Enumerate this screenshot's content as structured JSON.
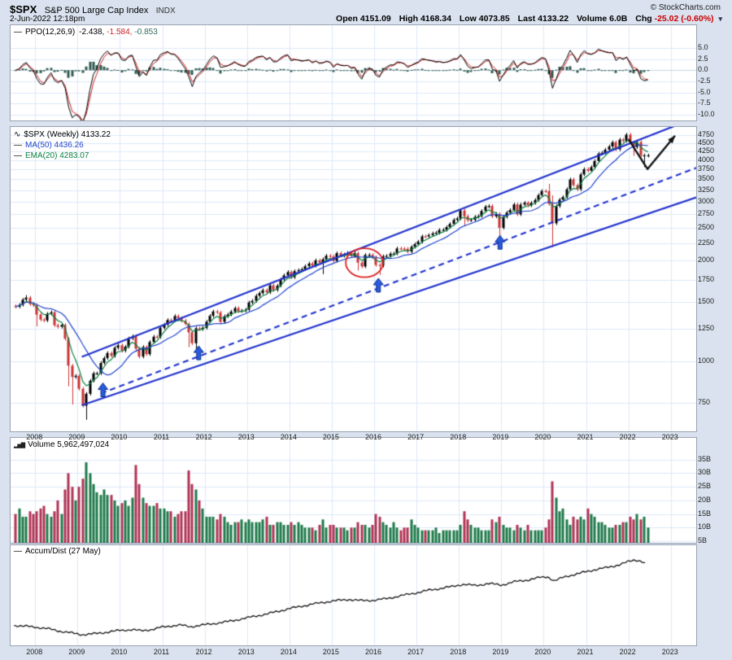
{
  "header": {
    "symbol": "$SPX",
    "index_name": "S&P 500 Large Cap Index",
    "exchange": "INDX",
    "copyright": "© StockCharts.com",
    "datetime": "2-Jun-2022 12:18pm",
    "quote_fields": [
      {
        "label": "Open",
        "value": "4151.09"
      },
      {
        "label": "High",
        "value": "4168.34"
      },
      {
        "label": "Low",
        "value": "4073.85"
      },
      {
        "label": "Last",
        "value": "4133.22"
      },
      {
        "label": "Volume",
        "value": "6.0B"
      },
      {
        "label": "Chg",
        "value": "-25.02 (-0.60%)"
      }
    ]
  },
  "icons": {
    "dropdown": "▾",
    "wave": "∿",
    "line": "—",
    "bars": "▂▅▇"
  },
  "legends": {
    "ppo": {
      "name": "PPO(12,26,9)",
      "values": [
        {
          "text": "-2.438,"
        },
        {
          "text": "-1.584,"
        },
        {
          "text": "-0.853"
        }
      ]
    },
    "price": {
      "symbol": "$SPX (Weekly) 4133.22",
      "ma": "MA(50) 4436.26",
      "ema": "EMA(20) 4283.07"
    },
    "volume": {
      "label": "Volume 5,962,497,024"
    },
    "accum": {
      "label": "Accum/Dist (27 May)"
    }
  },
  "colors": {
    "page_bg": "#d9e2ee",
    "panel_bg": "#ffffff",
    "panel_border": "#98a3b2",
    "grid": "#dce8f8",
    "zero_line": "#c5d2e4",
    "axis_text": "#222222",
    "candle_up": "#000000",
    "candle_down": "#cc3333",
    "ma50": "#2244cc",
    "ema20": "#0c8040",
    "channel": "#2233cc",
    "ppo_line": "#000000",
    "ppo_signal": "#cc2222",
    "ppo_hist": "#2e5b50",
    "vol_up": "#1e7a4a",
    "vol_down": "#b03355",
    "accum_line": "#111111",
    "buy_arrow": "#2a5ade",
    "buy_arrow_border": "#0a2f8a",
    "annotation_red": "#dd2222",
    "annotation_black": "#111111",
    "chg_negative": "#cc0000"
  },
  "x_axis": {
    "years": [
      2008,
      2009,
      2010,
      2011,
      2012,
      2013,
      2014,
      2015,
      2016,
      2017,
      2018,
      2019,
      2020,
      2021,
      2022,
      2023
    ]
  },
  "chart_data": {
    "type": "multi-panel-financial",
    "x_unit": "decimal_year",
    "x_range": [
      2007.42,
      2023.6
    ],
    "monthly": {
      "start_year": 2007,
      "start_month": 7,
      "close": [
        1455,
        1474,
        1527,
        1549,
        1481,
        1468,
        1378,
        1331,
        1323,
        1386,
        1400,
        1280,
        1267,
        1283,
        1166,
        969,
        896,
        903,
        826,
        735,
        798,
        873,
        919,
        919,
        987,
        1021,
        1057,
        1036,
        1096,
        1115,
        1074,
        1104,
        1169,
        1187,
        1089,
        1031,
        1102,
        1049,
        1141,
        1183,
        1181,
        1258,
        1286,
        1327,
        1326,
        1364,
        1345,
        1321,
        1292,
        1219,
        1131,
        1253,
        1247,
        1258,
        1312,
        1366,
        1408,
        1398,
        1310,
        1362,
        1379,
        1407,
        1441,
        1412,
        1416,
        1426,
        1498,
        1515,
        1569,
        1598,
        1631,
        1606,
        1686,
        1633,
        1682,
        1757,
        1806,
        1848,
        1783,
        1859,
        1872,
        1884,
        1924,
        1960,
        1931,
        2003,
        1972,
        2018,
        2068,
        2059,
        1995,
        2105,
        2068,
        2086,
        2107,
        2063,
        2104,
        1972,
        1920,
        2079,
        2080,
        2044,
        1940,
        1932,
        2060,
        2065,
        2097,
        2099,
        2174,
        2171,
        2168,
        2126,
        2199,
        2239,
        2279,
        2364,
        2363,
        2384,
        2412,
        2423,
        2470,
        2472,
        2519,
        2575,
        2648,
        2674,
        2824,
        2714,
        2641,
        2648,
        2705,
        2718,
        2816,
        2902,
        2914,
        2712,
        2760,
        2507,
        2704,
        2784,
        2834,
        2946,
        2752,
        2942,
        2980,
        2926,
        2977,
        3038,
        3141,
        3231,
        3226,
        2954,
        2585,
        2912,
        3044,
        3100,
        3271,
        3500,
        3363,
        3270,
        3622,
        3756,
        3714,
        3811,
        3973,
        4181,
        4204,
        4297,
        4395,
        4523,
        4308,
        4605,
        4567,
        4766,
        4516,
        4374,
        4530,
        4132,
        4132,
        4133
      ],
      "volume_billions": [
        15,
        17,
        14,
        14,
        16,
        15,
        16,
        17,
        18,
        15,
        14,
        16,
        20,
        15,
        24,
        30,
        25,
        20,
        25,
        28,
        34,
        30,
        26,
        23,
        22,
        24,
        22,
        22,
        20,
        18,
        19,
        20,
        18,
        21,
        33,
        26,
        21,
        19,
        18,
        18,
        19,
        17,
        17,
        16,
        16,
        14,
        15,
        16,
        16,
        31,
        26,
        24,
        20,
        17,
        14,
        14,
        14,
        13,
        15,
        14,
        12,
        11,
        12,
        12,
        13,
        12,
        13,
        12,
        12,
        12,
        13,
        14,
        11,
        11,
        12,
        12,
        11,
        11,
        12,
        11,
        12,
        11,
        10,
        10,
        10,
        9,
        11,
        13,
        10,
        11,
        11,
        10,
        10,
        10,
        9,
        10,
        10,
        12,
        11,
        11,
        10,
        11,
        15,
        14,
        12,
        11,
        10,
        12,
        10,
        9,
        10,
        10,
        13,
        11,
        10,
        9,
        9,
        9,
        9,
        10,
        8,
        9,
        9,
        9,
        9,
        9,
        11,
        16,
        13,
        11,
        10,
        10,
        9,
        9,
        9,
        13,
        12,
        14,
        11,
        10,
        10,
        9,
        11,
        10,
        9,
        11,
        9,
        9,
        9,
        9,
        10,
        13,
        27,
        21,
        16,
        17,
        13,
        11,
        14,
        13,
        14,
        13,
        17,
        15,
        14,
        12,
        12,
        11,
        10,
        10,
        11,
        11,
        12,
        12,
        14,
        13,
        15,
        13,
        14,
        10
      ],
      "ohlc_overrides": {
        "2007-10": {
          "high": 1576
        },
        "2008-01": {
          "low": 1270
        },
        "2008-10": {
          "low": 840
        },
        "2008-11": {
          "low": 741
        },
        "2009-03": {
          "low": 667
        },
        "2010-05": {
          "low": 1066
        },
        "2011-08": {
          "low": 1101
        },
        "2011-10": {
          "low": 1075
        },
        "2014-10": {
          "low": 1821
        },
        "2015-08": {
          "low": 1867
        },
        "2016-02": {
          "low": 1810
        },
        "2018-02": {
          "low": 2533
        },
        "2018-12": {
          "low": 2347
        },
        "2020-02": {
          "high": 3393
        },
        "2020-03": {
          "low": 2192,
          "high": 3137
        },
        "2022-01": {
          "high": 4818
        },
        "2022-02": {
          "low": 4115
        },
        "2022-05": {
          "low": 3810
        },
        "2022-06": {
          "high": 4177,
          "low": 4074
        }
      }
    },
    "ppo_panel": {
      "type": "line+histogram",
      "params": [
        12,
        26,
        9
      ],
      "fast_months": 2.77,
      "slow_months": 6.0,
      "signal_months": 2.08,
      "y_range": [
        -11.3,
        10.1
      ],
      "ytick_values": [
        5.0,
        2.5,
        0.0,
        -2.5,
        -5.0,
        -7.5,
        -10.0
      ],
      "ytick_labels": [
        "5.0",
        "2.5",
        "0.0",
        "-2.5",
        "-5.0",
        "-7.5",
        "-10.0"
      ]
    },
    "price_panel": {
      "type": "candlestick",
      "scale": "log",
      "y_range": [
        616,
        5025
      ],
      "ytick_values": [
        4750,
        4500,
        4250,
        4000,
        3750,
        3500,
        3250,
        3000,
        2750,
        2500,
        2250,
        2000,
        1750,
        1500,
        1250,
        1000,
        750
      ],
      "ma50_weeks": 50,
      "ema20_weeks": 20,
      "channel_lines": [
        {
          "style": "solid",
          "points": [
            [
              2009.1,
              1030
            ],
            [
              2023.5,
              5300
            ]
          ]
        },
        {
          "style": "dashed",
          "points": [
            [
              2009.55,
              800
            ],
            [
              2023.6,
              3790
            ]
          ]
        },
        {
          "style": "solid",
          "points": [
            [
              2009.1,
              737
            ],
            [
              2023.6,
              3090
            ]
          ]
        }
      ],
      "buy_arrows": [
        [
          2009.6,
          860
        ],
        [
          2011.86,
          1110
        ],
        [
          2016.1,
          1770
        ],
        [
          2018.97,
          2380
        ]
      ],
      "red_circle": {
        "year": 2015.77,
        "price": 1970,
        "rx_years": 0.44,
        "ry_ratio": 1.105
      },
      "projection_arrow": [
        [
          2022.0,
          4620
        ],
        [
          2022.45,
          3760
        ],
        [
          2023.1,
          4730
        ]
      ]
    },
    "volume_panel": {
      "type": "bar",
      "y_range_billions": [
        4.4,
        43
      ],
      "ytick_values": [
        35,
        30,
        25,
        20,
        15,
        10,
        5
      ],
      "ytick_labels": [
        "35B",
        "30B",
        "25B",
        "20B",
        "15B",
        "10B",
        "5B"
      ]
    },
    "accum_panel": {
      "type": "line",
      "y_range": [
        0,
        100
      ],
      "points": [
        [
          2007.5,
          18
        ],
        [
          2007.75,
          17
        ],
        [
          2008.0,
          16
        ],
        [
          2008.3,
          14
        ],
        [
          2008.6,
          11
        ],
        [
          2008.85,
          9
        ],
        [
          2009.1,
          7
        ],
        [
          2009.4,
          8
        ],
        [
          2009.7,
          10
        ],
        [
          2010.0,
          12
        ],
        [
          2010.3,
          13
        ],
        [
          2010.5,
          11.5
        ],
        [
          2010.8,
          13.5
        ],
        [
          2011.0,
          16
        ],
        [
          2011.4,
          18.5
        ],
        [
          2011.65,
          16.5
        ],
        [
          2011.9,
          18
        ],
        [
          2012.2,
          20
        ],
        [
          2012.6,
          23
        ],
        [
          2013.0,
          27
        ],
        [
          2013.5,
          32
        ],
        [
          2014.0,
          38
        ],
        [
          2014.5,
          43
        ],
        [
          2015.0,
          47
        ],
        [
          2015.4,
          49
        ],
        [
          2015.7,
          47.5
        ],
        [
          2016.0,
          48
        ],
        [
          2016.3,
          50
        ],
        [
          2016.8,
          55
        ],
        [
          2017.3,
          60
        ],
        [
          2017.8,
          64
        ],
        [
          2018.1,
          67
        ],
        [
          2018.4,
          65.5
        ],
        [
          2018.7,
          68
        ],
        [
          2019.0,
          66
        ],
        [
          2019.3,
          70
        ],
        [
          2019.6,
          72
        ],
        [
          2019.9,
          75
        ],
        [
          2020.1,
          76
        ],
        [
          2020.25,
          71
        ],
        [
          2020.5,
          76
        ],
        [
          2020.75,
          79
        ],
        [
          2021.0,
          82
        ],
        [
          2021.25,
          85
        ],
        [
          2021.5,
          87
        ],
        [
          2021.75,
          90
        ],
        [
          2022.0,
          94
        ],
        [
          2022.15,
          96
        ],
        [
          2022.3,
          95
        ],
        [
          2022.42,
          91
        ]
      ]
    }
  }
}
